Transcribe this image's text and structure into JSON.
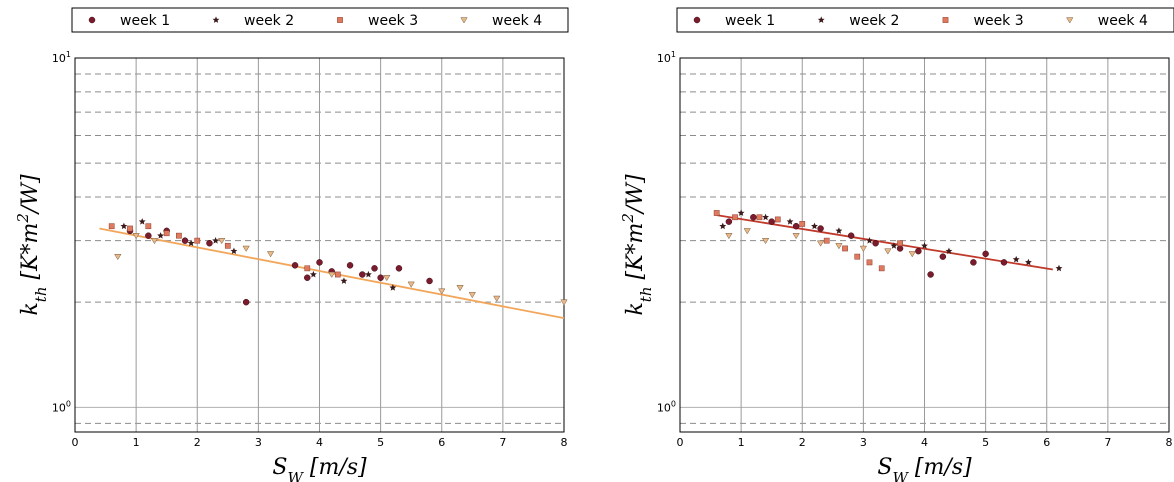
{
  "chart_data": [
    {
      "type": "scatter",
      "xlabel": "S_W  [m/s]",
      "ylabel": "k_th [K*m^2/W]",
      "xlim": [
        0,
        8
      ],
      "ylim": [
        0.85,
        10
      ],
      "yscale": "log",
      "x_ticks": [
        "0",
        "1",
        "2",
        "3",
        "4",
        "5",
        "6",
        "7",
        "8"
      ],
      "y_ticks": [
        "10^0",
        "10^1"
      ],
      "grid": true,
      "legend_position": "top",
      "series": [
        {
          "name": "week 1",
          "marker": "circle",
          "color": "#7b1c2e",
          "points": [
            [
              0.9,
              3.2
            ],
            [
              1.2,
              3.1
            ],
            [
              1.5,
              3.2
            ],
            [
              1.8,
              3.0
            ],
            [
              2.2,
              2.95
            ],
            [
              2.8,
              2.0
            ],
            [
              3.6,
              2.55
            ],
            [
              3.8,
              2.35
            ],
            [
              4.0,
              2.6
            ],
            [
              4.2,
              2.45
            ],
            [
              4.5,
              2.55
            ],
            [
              4.7,
              2.4
            ],
            [
              4.9,
              2.5
            ],
            [
              5.0,
              2.35
            ],
            [
              5.3,
              2.5
            ],
            [
              5.8,
              2.3
            ]
          ]
        },
        {
          "name": "week 2",
          "marker": "star",
          "color": "#3a1a1a",
          "points": [
            [
              0.8,
              3.3
            ],
            [
              1.1,
              3.4
            ],
            [
              1.4,
              3.1
            ],
            [
              1.9,
              2.95
            ],
            [
              2.3,
              3.0
            ],
            [
              2.6,
              2.8
            ],
            [
              3.9,
              2.4
            ],
            [
              4.4,
              2.3
            ],
            [
              4.8,
              2.4
            ],
            [
              5.2,
              2.2
            ]
          ]
        },
        {
          "name": "week 3",
          "marker": "square",
          "color": "#e07a5f",
          "points": [
            [
              0.6,
              3.3
            ],
            [
              0.9,
              3.25
            ],
            [
              1.2,
              3.3
            ],
            [
              1.5,
              3.15
            ],
            [
              1.7,
              3.1
            ],
            [
              2.0,
              3.0
            ],
            [
              2.5,
              2.9
            ],
            [
              3.8,
              2.5
            ],
            [
              4.3,
              2.4
            ]
          ]
        },
        {
          "name": "week 4",
          "marker": "triangle-down",
          "color": "#e8b98a",
          "points": [
            [
              0.7,
              2.7
            ],
            [
              1.0,
              3.1
            ],
            [
              1.3,
              3.0
            ],
            [
              2.4,
              3.0
            ],
            [
              2.8,
              2.85
            ],
            [
              3.2,
              2.75
            ],
            [
              4.2,
              2.4
            ],
            [
              5.1,
              2.35
            ],
            [
              5.5,
              2.25
            ],
            [
              6.0,
              2.15
            ],
            [
              6.3,
              2.2
            ],
            [
              6.5,
              2.1
            ],
            [
              6.9,
              2.05
            ],
            [
              8.0,
              2.0
            ]
          ]
        }
      ],
      "fit_line": {
        "x": [
          0.4,
          8.0
        ],
        "y": [
          3.25,
          1.8
        ],
        "color": "#f2a65a"
      }
    },
    {
      "type": "scatter",
      "xlabel": "S_W  [m/s]",
      "ylabel": "k_th [K*m^2/W]",
      "xlim": [
        0,
        8
      ],
      "ylim": [
        0.85,
        10
      ],
      "yscale": "log",
      "x_ticks": [
        "0",
        "1",
        "2",
        "3",
        "4",
        "5",
        "6",
        "7",
        "8"
      ],
      "y_ticks": [
        "10^0",
        "10^1"
      ],
      "grid": true,
      "legend_position": "top",
      "series": [
        {
          "name": "week 1",
          "marker": "circle",
          "color": "#7b1c2e",
          "points": [
            [
              0.8,
              3.4
            ],
            [
              1.2,
              3.5
            ],
            [
              1.5,
              3.4
            ],
            [
              1.9,
              3.3
            ],
            [
              2.3,
              3.25
            ],
            [
              2.8,
              3.1
            ],
            [
              3.2,
              2.95
            ],
            [
              3.6,
              2.85
            ],
            [
              3.9,
              2.8
            ],
            [
              4.1,
              2.4
            ],
            [
              4.3,
              2.7
            ],
            [
              4.8,
              2.6
            ],
            [
              5.0,
              2.75
            ],
            [
              5.3,
              2.6
            ]
          ]
        },
        {
          "name": "week 2",
          "marker": "star",
          "color": "#3a1a1a",
          "points": [
            [
              0.7,
              3.3
            ],
            [
              1.0,
              3.6
            ],
            [
              1.4,
              3.5
            ],
            [
              1.8,
              3.4
            ],
            [
              2.2,
              3.3
            ],
            [
              2.6,
              3.2
            ],
            [
              3.1,
              3.0
            ],
            [
              3.5,
              2.9
            ],
            [
              4.0,
              2.9
            ],
            [
              4.4,
              2.8
            ],
            [
              5.5,
              2.65
            ],
            [
              5.7,
              2.6
            ],
            [
              6.2,
              2.5
            ]
          ]
        },
        {
          "name": "week 3",
          "marker": "square",
          "color": "#e07a5f",
          "points": [
            [
              0.6,
              3.6
            ],
            [
              0.9,
              3.5
            ],
            [
              1.3,
              3.5
            ],
            [
              1.6,
              3.45
            ],
            [
              2.0,
              3.35
            ],
            [
              2.4,
              3.0
            ],
            [
              2.7,
              2.85
            ],
            [
              2.9,
              2.7
            ],
            [
              3.1,
              2.6
            ],
            [
              3.3,
              2.5
            ],
            [
              3.6,
              2.95
            ]
          ]
        },
        {
          "name": "week 4",
          "marker": "triangle-down",
          "color": "#e8b98a",
          "points": [
            [
              0.8,
              3.1
            ],
            [
              1.1,
              3.2
            ],
            [
              1.4,
              3.0
            ],
            [
              1.9,
              3.1
            ],
            [
              2.3,
              2.95
            ],
            [
              2.6,
              2.9
            ],
            [
              3.0,
              2.85
            ],
            [
              3.4,
              2.8
            ],
            [
              3.8,
              2.75
            ]
          ]
        }
      ],
      "fit_line": {
        "x": [
          0.6,
          6.1
        ],
        "y": [
          3.55,
          2.48
        ],
        "color": "#c0392b"
      }
    }
  ]
}
